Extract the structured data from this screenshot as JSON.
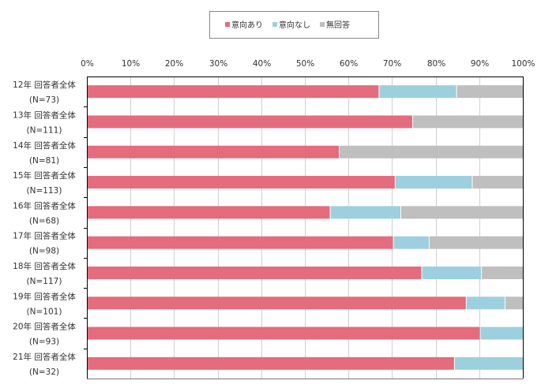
{
  "chart_data": {
    "type": "bar",
    "orientation": "horizontal",
    "stacked": true,
    "title": "",
    "xlabel": "",
    "ylabel": "",
    "xlim": [
      0,
      100
    ],
    "x_ticks": [
      "0%",
      "10%",
      "20%",
      "30%",
      "40%",
      "50%",
      "60%",
      "70%",
      "80%",
      "90%",
      "100%"
    ],
    "grid": true,
    "legend_position": "top-center",
    "categories": [
      {
        "line1": "12年 回答者全体",
        "line2": "(N=73)"
      },
      {
        "line1": "13年 回答者全体",
        "line2": "(N=111)"
      },
      {
        "line1": "14年 回答者全体",
        "line2": "(N=81)"
      },
      {
        "line1": "15年 回答者全体",
        "line2": "(N=113)"
      },
      {
        "line1": "16年 回答者全体",
        "line2": "(N=68)"
      },
      {
        "line1": "17年 回答者全体",
        "line2": "(N=98)"
      },
      {
        "line1": "18年 回答者全体",
        "line2": "(N=117)"
      },
      {
        "line1": "19年 回答者全体",
        "line2": "(N=101)"
      },
      {
        "line1": "20年 回答者全体",
        "line2": "(N=93)"
      },
      {
        "line1": "21年 回答者全体",
        "line2": "(N=32)"
      }
    ],
    "series": [
      {
        "name": "意向あり",
        "color": "#e46c7c",
        "values": [
          67.1,
          74.8,
          58.0,
          70.8,
          55.9,
          70.4,
          76.9,
          87.1,
          90.3,
          84.4
        ]
      },
      {
        "name": "意向なし",
        "color": "#9dd0de",
        "values": [
          17.8,
          0,
          0,
          17.7,
          16.2,
          8.2,
          13.7,
          8.9,
          9.7,
          15.6
        ]
      },
      {
        "name": "無回答",
        "color": "#bfbfbf",
        "values": [
          15.1,
          25.2,
          42.0,
          11.5,
          27.9,
          21.4,
          9.4,
          4.0,
          0,
          0
        ]
      }
    ]
  }
}
